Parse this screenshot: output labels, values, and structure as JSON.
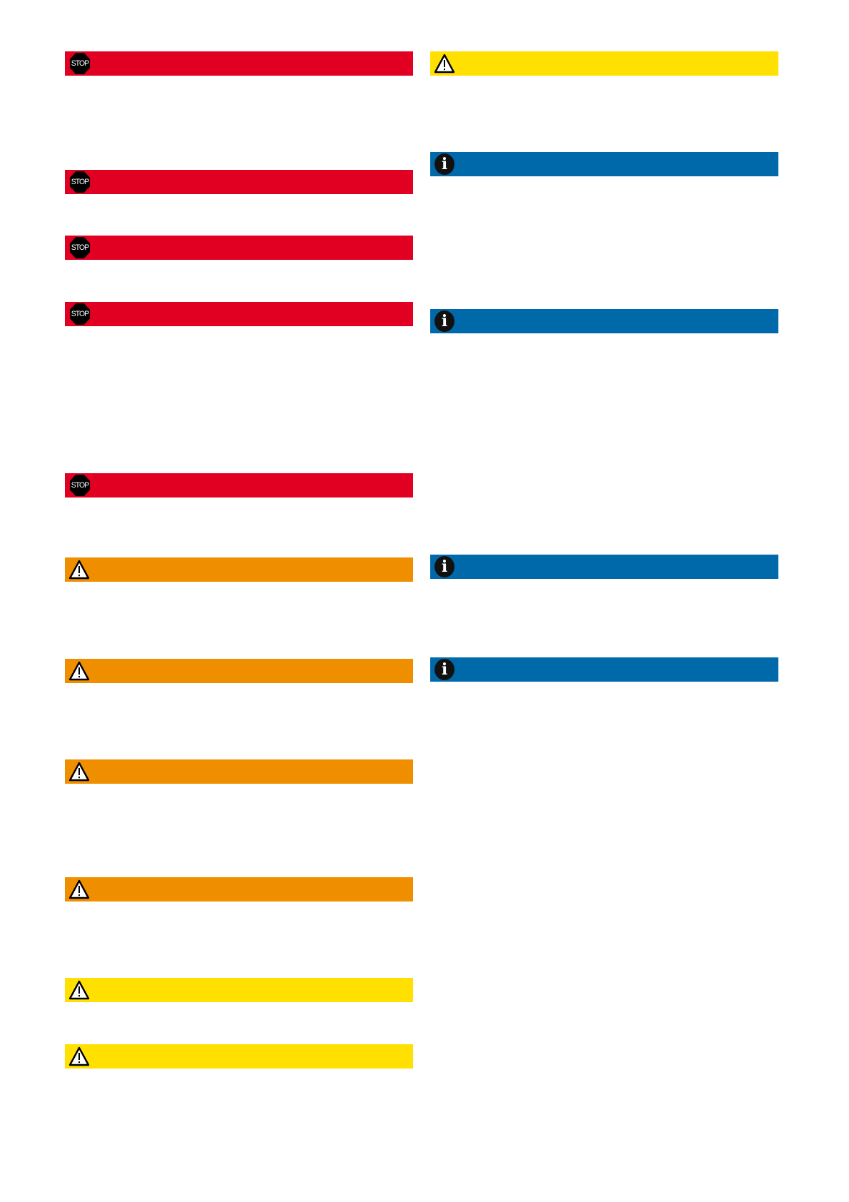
{
  "colors": {
    "danger": "#E10022",
    "warning": "#EF8F00",
    "caution": "#FFE000",
    "notice": "#0069AA"
  },
  "icons": {
    "stop_text": "STOP",
    "warning": "warning-triangle-icon",
    "info_text": "i"
  },
  "left_column": [
    "danger",
    "danger",
    "danger",
    "danger",
    "danger",
    "warning",
    "warning",
    "warning",
    "warning",
    "caution",
    "caution"
  ],
  "right_column": [
    "caution",
    "notice",
    "notice",
    "notice",
    "notice"
  ]
}
